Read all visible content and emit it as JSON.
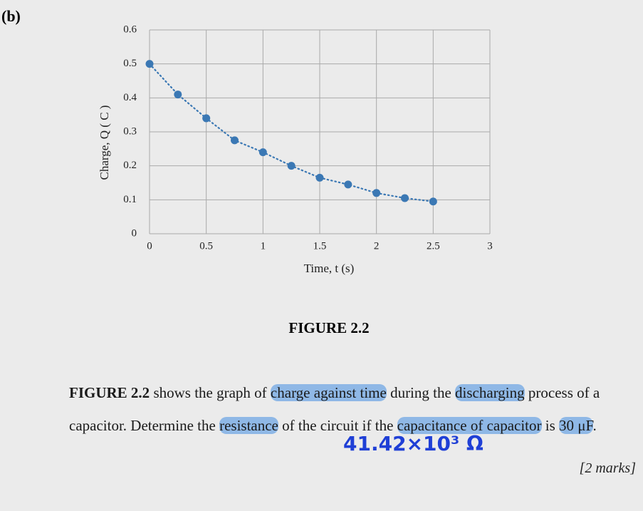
{
  "part_label": "(b)",
  "chart_data": {
    "type": "scatter",
    "x": [
      0,
      0.25,
      0.5,
      0.75,
      1,
      1.25,
      1.5,
      1.75,
      2,
      2.25,
      2.5
    ],
    "series": [
      {
        "color": "#3b78b4",
        "values": [
          0.5,
          0.41,
          0.34,
          0.275,
          0.24,
          0.2,
          0.165,
          0.145,
          0.12,
          0.105,
          0.095
        ]
      }
    ],
    "connect": "dotted",
    "xlabel": "Time, t (s)",
    "ylabel": "Charge, Q ( C )",
    "xlim": [
      0,
      3
    ],
    "ylim": [
      0,
      0.6
    ],
    "xticks": [
      0,
      0.5,
      1,
      1.5,
      2,
      2.5,
      3
    ],
    "yticks": [
      0,
      0.1,
      0.2,
      0.3,
      0.4,
      0.5,
      0.6
    ],
    "grid": true
  },
  "figure_caption": "FIGURE 2.2",
  "question": {
    "segments": [
      {
        "text": "FIGURE 2.2",
        "bold": true,
        "highlight": false
      },
      {
        "text": " shows the graph of ",
        "bold": false,
        "highlight": false
      },
      {
        "text": "charge against time",
        "bold": false,
        "highlight": true
      },
      {
        "text": " during the ",
        "bold": false,
        "highlight": false
      },
      {
        "text": "discharging",
        "bold": false,
        "highlight": true
      },
      {
        "text": " process of a capacitor. Determine the ",
        "bold": false,
        "highlight": false
      },
      {
        "text": "resistance",
        "bold": false,
        "highlight": true
      },
      {
        "text": " of the circuit if the ",
        "bold": false,
        "highlight": false
      },
      {
        "text": "capacitance of capacitor",
        "bold": false,
        "highlight": true
      },
      {
        "text": " is ",
        "bold": false,
        "highlight": false
      },
      {
        "text": "30 μF",
        "bold": false,
        "highlight": true
      },
      {
        "text": ".",
        "bold": false,
        "highlight": false
      }
    ]
  },
  "answer": "41.42×10³ Ω",
  "marks": "[2 marks]"
}
